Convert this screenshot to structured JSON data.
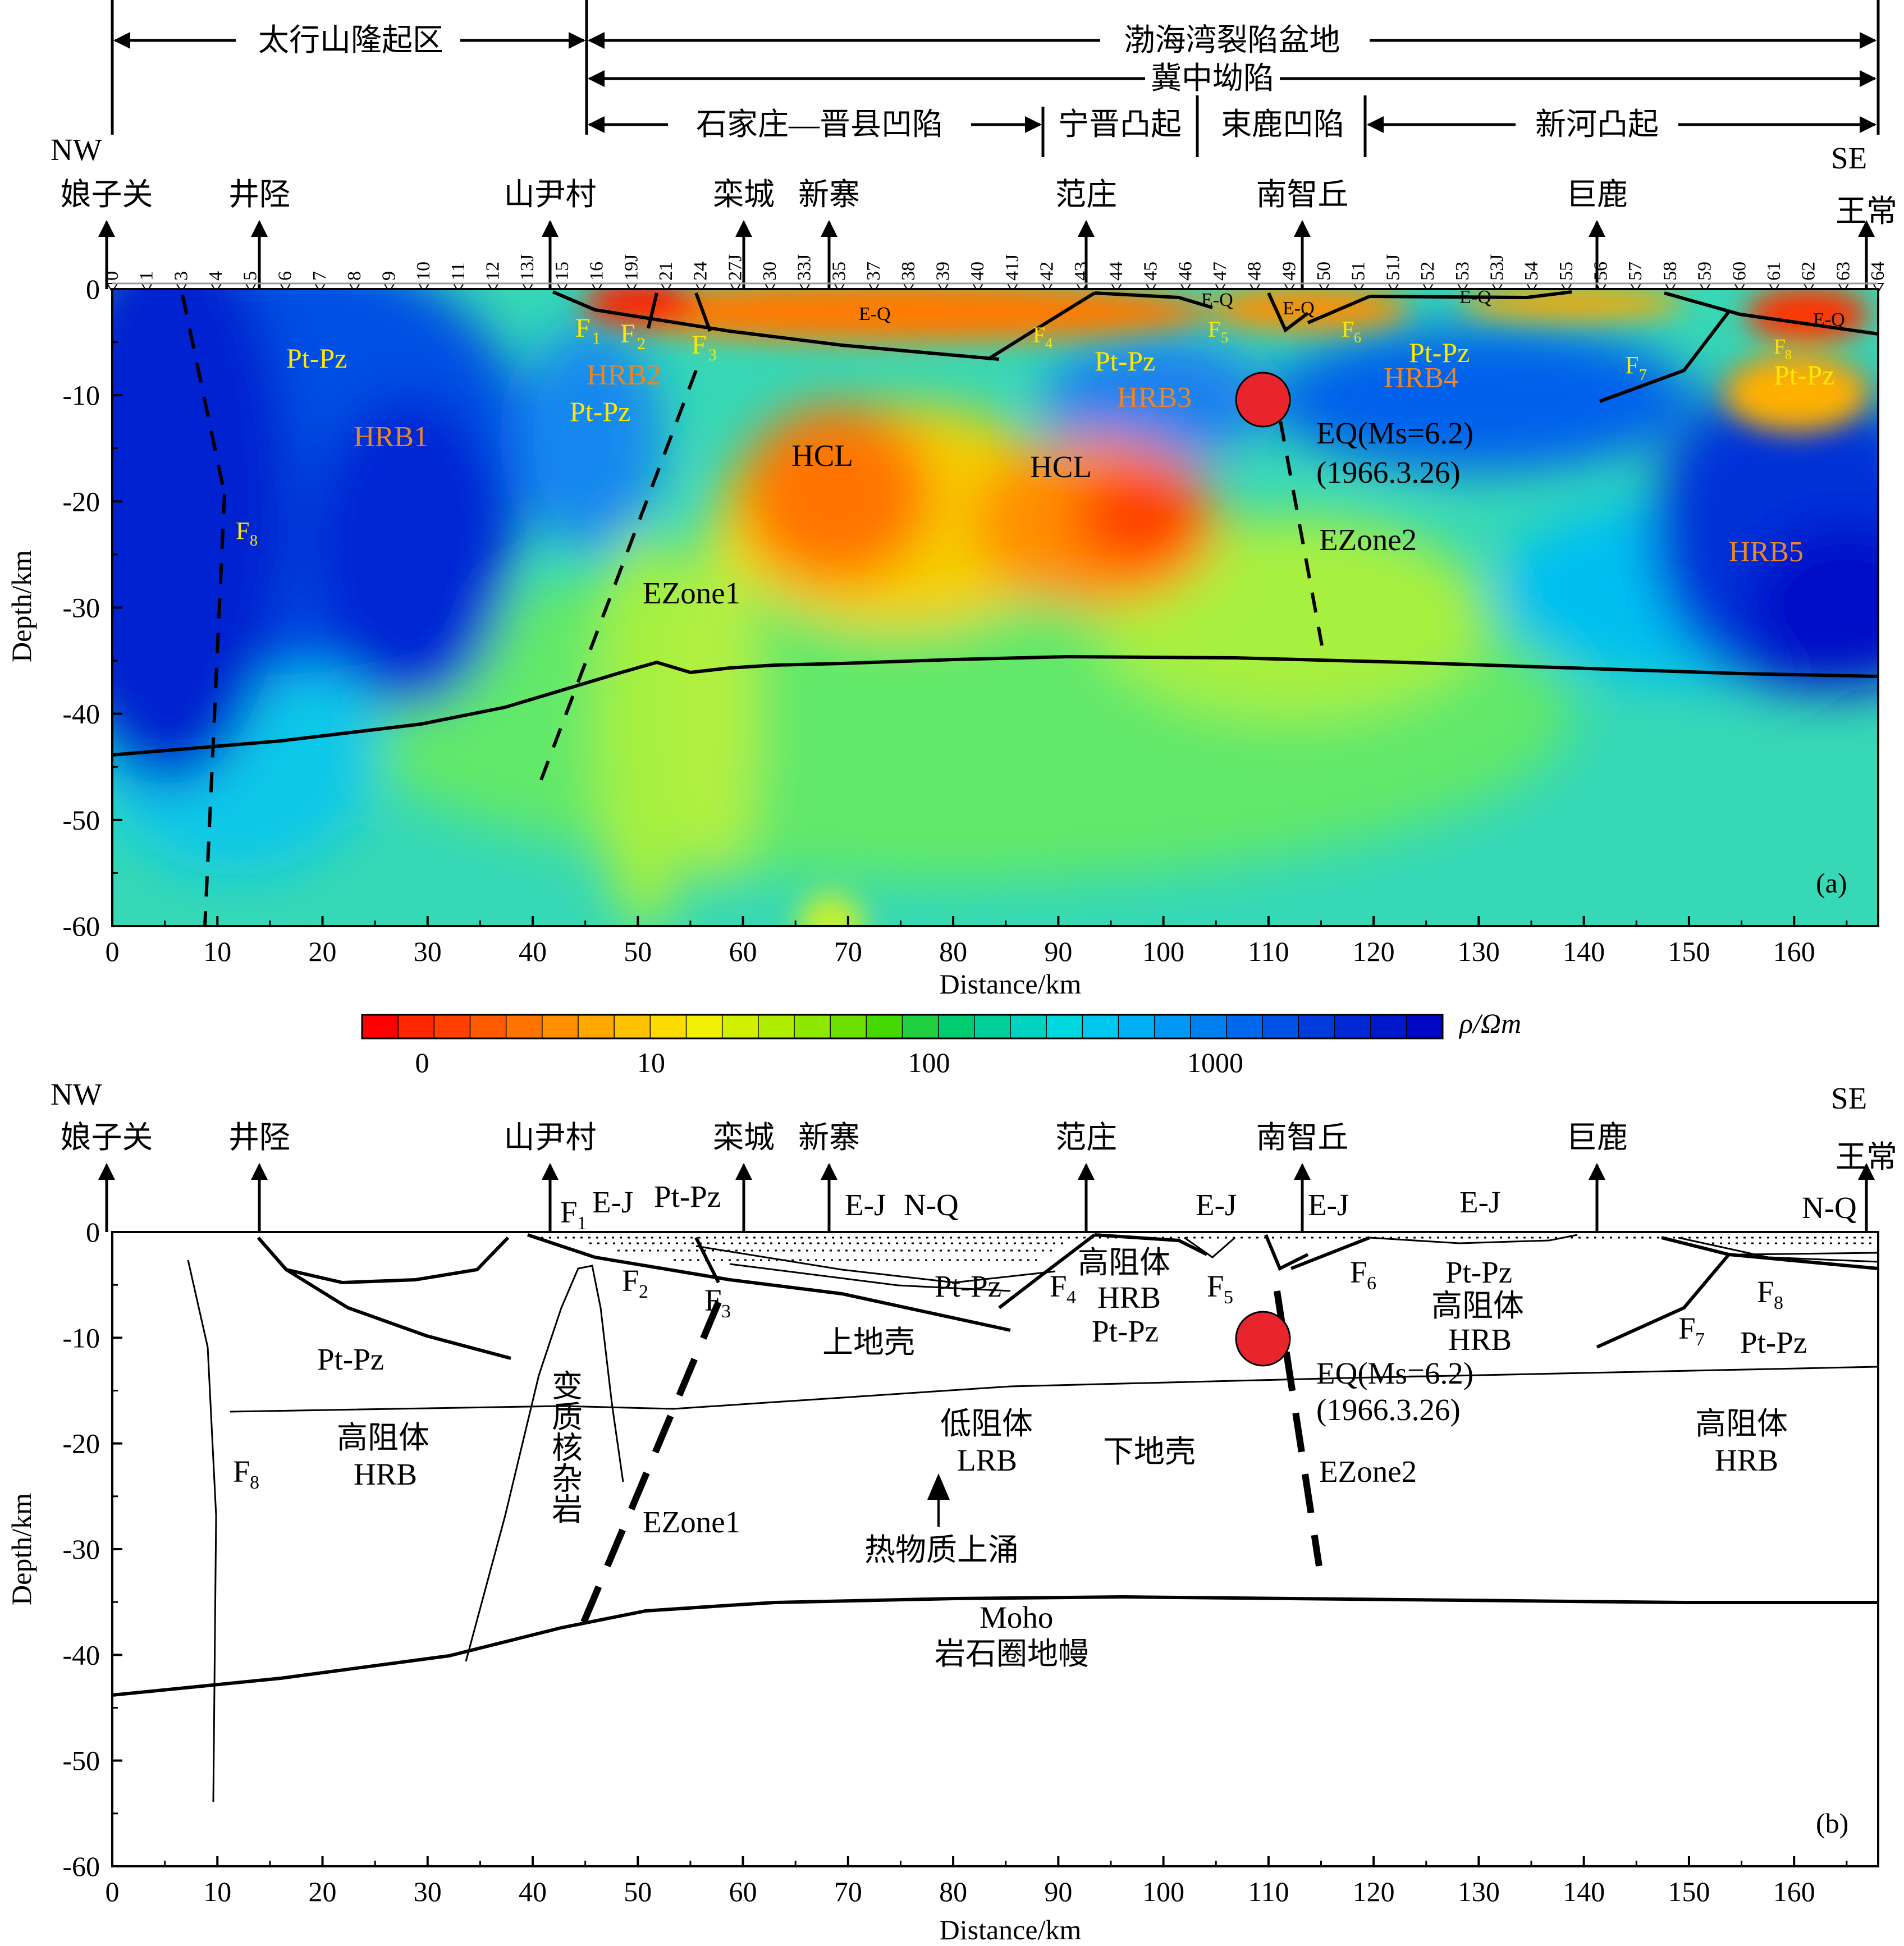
{
  "regions": {
    "taihang": "太行山隆起区",
    "bohai": "渤海湾裂陷盆地",
    "jizhong": "冀中坳陷",
    "shijiazhuang": "石家庄—晋县凹陷",
    "ningjin": "宁晋凸起",
    "shulu": "束鹿凹陷",
    "xinhe": "新河凸起"
  },
  "directions": {
    "nw": "NW",
    "se": "SE"
  },
  "towns": [
    "娘子关",
    "井陉",
    "山尹村",
    "栾城",
    "新寨",
    "范庄",
    "南智丘",
    "巨鹿",
    "王常"
  ],
  "stations": [
    "0",
    "1",
    "3",
    "4",
    "5",
    "6",
    "7",
    "8",
    "9",
    "10",
    "11",
    "12",
    "13J",
    "15",
    "16",
    "19J",
    "21",
    "24",
    "27J",
    "30",
    "33J",
    "35",
    "37",
    "38",
    "39",
    "40",
    "41J",
    "42",
    "43",
    "44",
    "45",
    "46",
    "47",
    "48",
    "49",
    "50",
    "51",
    "51J",
    "52",
    "53",
    "53J",
    "54",
    "55",
    "56",
    "57",
    "58",
    "59",
    "60",
    "61",
    "62",
    "63",
    "64"
  ],
  "axes": {
    "ylabel": "Depth/km",
    "xlabel": "Distance/km",
    "yticks": [
      "0",
      "-10",
      "-20",
      "-30",
      "-40",
      "-50",
      "-60"
    ],
    "xticks": [
      "0",
      "10",
      "20",
      "30",
      "40",
      "50",
      "60",
      "70",
      "80",
      "90",
      "100",
      "110",
      "120",
      "130",
      "140",
      "150",
      "160"
    ]
  },
  "panel_a": {
    "tag": "(a)",
    "labels": {
      "ptpz": "Pt-Pz",
      "hrb1": "HRB1",
      "hrb2": "HRB2",
      "hrb3": "HRB3",
      "hrb4": "HRB4",
      "hrb5": "HRB5",
      "hcl": "HCL",
      "eq": "E-Q",
      "ezone1": "EZone1",
      "ezone2": "EZone2",
      "f1": "F",
      "f2": "F",
      "f3": "F",
      "f4": "F",
      "f5": "F",
      "f6": "F",
      "f7": "F",
      "f8": "F",
      "eq_line1": "EQ(Ms=6.2)",
      "eq_line2": "(1966.3.26)"
    }
  },
  "colorbar": {
    "unit": "ρ/Ωm",
    "ticks": [
      "0",
      "10",
      "100",
      "1000"
    ],
    "colors": [
      "#ff0000",
      "#ff2600",
      "#ff4000",
      "#ff5a00",
      "#ff7400",
      "#ff8e00",
      "#ffa800",
      "#ffc200",
      "#ffdc00",
      "#f0f000",
      "#d0f000",
      "#b0ee00",
      "#8ee800",
      "#6ce000",
      "#44d800",
      "#20d040",
      "#00cc70",
      "#00d09a",
      "#00d4c0",
      "#00d8e0",
      "#00c8f0",
      "#00b0f4",
      "#0098f4",
      "#0080f0",
      "#0068ec",
      "#0052e4",
      "#003cdc",
      "#0028d4",
      "#0018cc",
      "#0008c4"
    ]
  },
  "panel_b": {
    "tag": "(b)",
    "labels": {
      "ej": "E-J",
      "ptpz": "Pt-Pz",
      "nq": "N-Q",
      "gaozuti": "高阻体",
      "hrb": "HRB",
      "diyuti": "低阻体",
      "lrb": "LRB",
      "upper": "上地壳",
      "lower": "下地壳",
      "bianzhi": "变质核杂岩",
      "rewuzhi": "热物质上涌",
      "moho": "Moho",
      "mantle": "岩石圈地幔",
      "ezone1": "EZone1",
      "ezone2": "EZone2",
      "eq_line1": "EQ(Ms=6.2)",
      "eq_line2": "(1966.3.26)",
      "f": "F"
    }
  }
}
